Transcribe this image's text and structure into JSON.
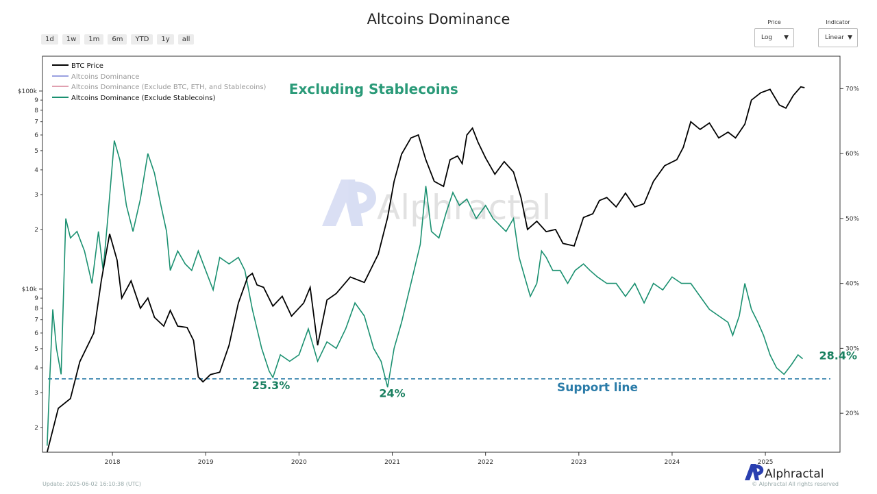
{
  "header": {
    "title": "Altcoins Dominance"
  },
  "range_buttons": [
    "1d",
    "1w",
    "1m",
    "6m",
    "YTD",
    "1y",
    "all"
  ],
  "controls": {
    "price": {
      "label": "Price",
      "value": "Log"
    },
    "indicator": {
      "label": "Indicator",
      "value": "Linear"
    }
  },
  "watermark": "Alphractal",
  "footer": {
    "update": "Update: 2025-06-02 16:10:38 (UTC)",
    "copyright": "© Alphractal All rights reserved",
    "logo_text": "Alphractal"
  },
  "chart_data": {
    "type": "line",
    "title": "Altcoins Dominance",
    "left_axis": {
      "scale": "log",
      "range": [
        1500,
        150000
      ],
      "major_ticks": [
        "$10k",
        "$100k"
      ],
      "minor_ticks": [
        "2",
        "3",
        "4",
        "5",
        "6",
        "7",
        "8",
        "9"
      ]
    },
    "right_axis": {
      "scale": "linear",
      "range": [
        14,
        75
      ],
      "ticks": [
        "20%",
        "30%",
        "40%",
        "50%",
        "60%",
        "70%"
      ]
    },
    "x_axis": {
      "range": [
        "2017-04",
        "2025-10"
      ],
      "ticks": [
        "2018",
        "2019",
        "2020",
        "2021",
        "2022",
        "2023",
        "2024",
        "2025"
      ]
    },
    "legend": {
      "placement": "top-left",
      "items": [
        {
          "label": "BTC Price",
          "color": "#000000"
        },
        {
          "label": "Altcoins Dominance",
          "color": "#9aa0e0"
        },
        {
          "label": "Altcoins Dominance (Exclude BTC, ETH, and Stablecoins)",
          "color": "#e0a0b0"
        },
        {
          "label": "Altcoins Dominance (Exclude Stablecoins)",
          "color": "#1a9070"
        }
      ]
    },
    "series": [
      {
        "name": "BTC Price",
        "axis": "left",
        "color": "#000000",
        "points": [
          [
            2017.3,
            1500
          ],
          [
            2017.42,
            2500
          ],
          [
            2017.55,
            2800
          ],
          [
            2017.65,
            4300
          ],
          [
            2017.8,
            6000
          ],
          [
            2017.88,
            11000
          ],
          [
            2017.97,
            19000
          ],
          [
            2018.05,
            14000
          ],
          [
            2018.1,
            9000
          ],
          [
            2018.2,
            11000
          ],
          [
            2018.3,
            8000
          ],
          [
            2018.38,
            9000
          ],
          [
            2018.45,
            7200
          ],
          [
            2018.55,
            6500
          ],
          [
            2018.62,
            7800
          ],
          [
            2018.7,
            6500
          ],
          [
            2018.8,
            6400
          ],
          [
            2018.87,
            5500
          ],
          [
            2018.92,
            3600
          ],
          [
            2018.97,
            3400
          ],
          [
            2019.05,
            3700
          ],
          [
            2019.15,
            3800
          ],
          [
            2019.25,
            5200
          ],
          [
            2019.35,
            8500
          ],
          [
            2019.45,
            11500
          ],
          [
            2019.5,
            12000
          ],
          [
            2019.55,
            10500
          ],
          [
            2019.62,
            10200
          ],
          [
            2019.72,
            8200
          ],
          [
            2019.82,
            9200
          ],
          [
            2019.92,
            7300
          ],
          [
            2020.05,
            8500
          ],
          [
            2020.12,
            10200
          ],
          [
            2020.2,
            5200
          ],
          [
            2020.3,
            8800
          ],
          [
            2020.4,
            9500
          ],
          [
            2020.55,
            11500
          ],
          [
            2020.7,
            10800
          ],
          [
            2020.85,
            15000
          ],
          [
            2020.95,
            23000
          ],
          [
            2021.02,
            35000
          ],
          [
            2021.1,
            48000
          ],
          [
            2021.2,
            58000
          ],
          [
            2021.28,
            60000
          ],
          [
            2021.36,
            45000
          ],
          [
            2021.45,
            35000
          ],
          [
            2021.55,
            33000
          ],
          [
            2021.62,
            45000
          ],
          [
            2021.7,
            47000
          ],
          [
            2021.75,
            43000
          ],
          [
            2021.8,
            60000
          ],
          [
            2021.86,
            65000
          ],
          [
            2021.92,
            55000
          ],
          [
            2022.0,
            46000
          ],
          [
            2022.1,
            38000
          ],
          [
            2022.2,
            44000
          ],
          [
            2022.3,
            39000
          ],
          [
            2022.38,
            29000
          ],
          [
            2022.45,
            20000
          ],
          [
            2022.55,
            22000
          ],
          [
            2022.65,
            19500
          ],
          [
            2022.75,
            20000
          ],
          [
            2022.83,
            17000
          ],
          [
            2022.95,
            16500
          ],
          [
            2023.05,
            23000
          ],
          [
            2023.15,
            24000
          ],
          [
            2023.22,
            28000
          ],
          [
            2023.3,
            29000
          ],
          [
            2023.4,
            26000
          ],
          [
            2023.5,
            30500
          ],
          [
            2023.6,
            26000
          ],
          [
            2023.7,
            27000
          ],
          [
            2023.8,
            35000
          ],
          [
            2023.92,
            42000
          ],
          [
            2024.05,
            45000
          ],
          [
            2024.12,
            52000
          ],
          [
            2024.2,
            70000
          ],
          [
            2024.3,
            64000
          ],
          [
            2024.4,
            69000
          ],
          [
            2024.5,
            58000
          ],
          [
            2024.6,
            62000
          ],
          [
            2024.68,
            58000
          ],
          [
            2024.78,
            68000
          ],
          [
            2024.85,
            90000
          ],
          [
            2024.95,
            98000
          ],
          [
            2025.05,
            102000
          ],
          [
            2025.15,
            85000
          ],
          [
            2025.22,
            82000
          ],
          [
            2025.3,
            95000
          ],
          [
            2025.38,
            105000
          ],
          [
            2025.42,
            104000
          ]
        ]
      },
      {
        "name": "Altcoins Dominance (Exclude Stablecoins)",
        "axis": "right",
        "color": "#1a9070",
        "points": [
          [
            2017.3,
            15
          ],
          [
            2017.33,
            26
          ],
          [
            2017.36,
            36
          ],
          [
            2017.4,
            30
          ],
          [
            2017.45,
            26
          ],
          [
            2017.5,
            50
          ],
          [
            2017.55,
            47
          ],
          [
            2017.62,
            48
          ],
          [
            2017.7,
            45
          ],
          [
            2017.78,
            40
          ],
          [
            2017.85,
            48
          ],
          [
            2017.9,
            42
          ],
          [
            2017.95,
            50
          ],
          [
            2018.02,
            62
          ],
          [
            2018.08,
            59
          ],
          [
            2018.15,
            52
          ],
          [
            2018.22,
            48
          ],
          [
            2018.3,
            53
          ],
          [
            2018.38,
            60
          ],
          [
            2018.45,
            57
          ],
          [
            2018.52,
            52
          ],
          [
            2018.58,
            48
          ],
          [
            2018.62,
            42
          ],
          [
            2018.7,
            45
          ],
          [
            2018.78,
            43
          ],
          [
            2018.85,
            42
          ],
          [
            2018.92,
            45
          ],
          [
            2019.0,
            42
          ],
          [
            2019.08,
            39
          ],
          [
            2019.15,
            44
          ],
          [
            2019.25,
            43
          ],
          [
            2019.35,
            44
          ],
          [
            2019.42,
            42
          ],
          [
            2019.5,
            36
          ],
          [
            2019.55,
            33
          ],
          [
            2019.6,
            30
          ],
          [
            2019.68,
            26.5
          ],
          [
            2019.72,
            25.5
          ],
          [
            2019.8,
            29
          ],
          [
            2019.9,
            28
          ],
          [
            2020.0,
            29
          ],
          [
            2020.1,
            33
          ],
          [
            2020.2,
            28
          ],
          [
            2020.3,
            31
          ],
          [
            2020.4,
            30
          ],
          [
            2020.5,
            33
          ],
          [
            2020.6,
            37
          ],
          [
            2020.7,
            35
          ],
          [
            2020.8,
            30
          ],
          [
            2020.88,
            28
          ],
          [
            2020.95,
            24
          ],
          [
            2021.02,
            30
          ],
          [
            2021.1,
            34
          ],
          [
            2021.2,
            40
          ],
          [
            2021.3,
            46
          ],
          [
            2021.36,
            55
          ],
          [
            2021.42,
            48
          ],
          [
            2021.5,
            47
          ],
          [
            2021.58,
            51
          ],
          [
            2021.65,
            54
          ],
          [
            2021.72,
            52
          ],
          [
            2021.8,
            53
          ],
          [
            2021.9,
            50
          ],
          [
            2022.0,
            52
          ],
          [
            2022.08,
            50
          ],
          [
            2022.15,
            49
          ],
          [
            2022.22,
            48
          ],
          [
            2022.3,
            50
          ],
          [
            2022.36,
            44
          ],
          [
            2022.42,
            41
          ],
          [
            2022.48,
            38
          ],
          [
            2022.55,
            40
          ],
          [
            2022.6,
            45
          ],
          [
            2022.65,
            44
          ],
          [
            2022.72,
            42
          ],
          [
            2022.8,
            42
          ],
          [
            2022.88,
            40
          ],
          [
            2022.96,
            42
          ],
          [
            2023.05,
            43
          ],
          [
            2023.12,
            42
          ],
          [
            2023.2,
            41
          ],
          [
            2023.3,
            40
          ],
          [
            2023.4,
            40
          ],
          [
            2023.5,
            38
          ],
          [
            2023.6,
            40
          ],
          [
            2023.7,
            37
          ],
          [
            2023.8,
            40
          ],
          [
            2023.9,
            39
          ],
          [
            2024.0,
            41
          ],
          [
            2024.1,
            40
          ],
          [
            2024.2,
            40
          ],
          [
            2024.3,
            38
          ],
          [
            2024.4,
            36
          ],
          [
            2024.5,
            35
          ],
          [
            2024.6,
            34
          ],
          [
            2024.65,
            32
          ],
          [
            2024.72,
            35
          ],
          [
            2024.78,
            40
          ],
          [
            2024.85,
            36
          ],
          [
            2024.92,
            34
          ],
          [
            2024.98,
            32
          ],
          [
            2025.05,
            29
          ],
          [
            2025.12,
            27
          ],
          [
            2025.2,
            26
          ],
          [
            2025.28,
            27.5
          ],
          [
            2025.35,
            29
          ],
          [
            2025.4,
            28.4
          ]
        ]
      }
    ],
    "support_line": {
      "value_pct": 25.3,
      "label": "Support line",
      "color": "#2a7ba8"
    },
    "annotations": [
      {
        "text": "Excluding Stablecoins",
        "x": 2020.8,
        "pct": 69.2,
        "color": "#2a9a78"
      },
      {
        "text": "25.3%",
        "x": 2019.7,
        "pct": 23.7,
        "color": "#1a8060"
      },
      {
        "text": "24%",
        "x": 2021.0,
        "pct": 22.5,
        "color": "#1a8060"
      },
      {
        "text": "28.4%",
        "x": 2025.78,
        "pct": 28.3,
        "color": "#1a8060"
      }
    ]
  }
}
